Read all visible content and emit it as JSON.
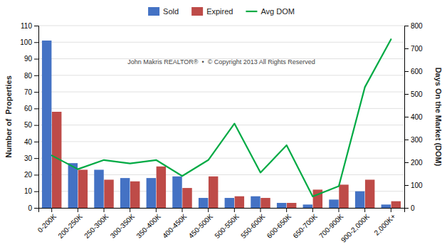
{
  "chart_data": {
    "type": "bar",
    "categories": [
      "0-200K",
      "200-250K",
      "250-300K",
      "300-350K",
      "350-400K",
      "400-450K",
      "450-500K",
      "500-550K",
      "550-600K",
      "600-650K",
      "650-700K",
      "700-900K",
      "900-2,000K",
      "2,000K+"
    ],
    "series": [
      {
        "name": "Sold",
        "type": "bar",
        "color": "#4472C4",
        "values": [
          101,
          27,
          23,
          18,
          18,
          19,
          6,
          6,
          7,
          3,
          2,
          5,
          10,
          2
        ]
      },
      {
        "name": "Expired",
        "type": "bar",
        "color": "#BE4B48",
        "values": [
          58,
          23,
          17,
          16,
          25,
          12,
          19,
          7,
          6,
          3,
          11,
          14,
          17,
          4
        ]
      },
      {
        "name": "Avg DOM",
        "type": "line",
        "axis": "y2",
        "color": "#00AA44",
        "values": [
          230,
          170,
          210,
          195,
          210,
          140,
          210,
          370,
          155,
          275,
          50,
          95,
          530,
          740
        ]
      }
    ],
    "ylabel": "Number of  Properties",
    "y2label": "Days On the Market (DOM)",
    "ylim": [
      0,
      110
    ],
    "yticks": [
      0,
      10,
      20,
      30,
      40,
      50,
      60,
      70,
      80,
      90,
      100,
      110
    ],
    "y2lim": [
      0,
      800
    ],
    "y2ticks": [
      0,
      100,
      200,
      300,
      400,
      500,
      600,
      700,
      800
    ],
    "annotations": [
      "John Makris REALTOR®  •  © Copyright 2013 All Rights Reserved"
    ],
    "grid": true,
    "legend": "top"
  }
}
